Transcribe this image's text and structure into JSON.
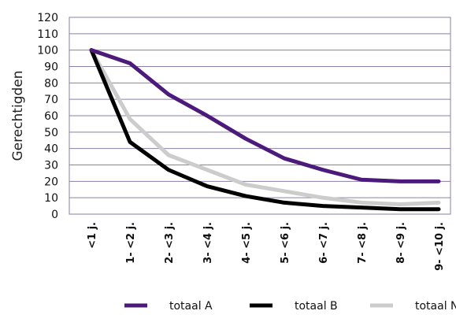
{
  "chart_data": {
    "type": "line",
    "title": "",
    "xlabel": "",
    "ylabel": "Gerechtigden",
    "ylim": [
      0,
      120
    ],
    "yticks": [
      0,
      10,
      20,
      30,
      40,
      50,
      60,
      70,
      80,
      90,
      100,
      110,
      120
    ],
    "grid": true,
    "legend": "bottom",
    "categories": [
      "<1 j.",
      "1- <2 j.",
      "2- <3 j.",
      "3- <4 j.",
      "4- <5 j.",
      "5- <6 j.",
      "6- <7 j.",
      "7- <8 j.",
      "8- <9 j.",
      "9- <10 j."
    ],
    "series": [
      {
        "name": "totaal A",
        "color": "#4b1a7a",
        "values": [
          100,
          92,
          73,
          60,
          46,
          34,
          27,
          21,
          20,
          20
        ]
      },
      {
        "name": "totaal B",
        "color": "#000000",
        "values": [
          100,
          44,
          27,
          17,
          11,
          7,
          5,
          4,
          3,
          3
        ]
      },
      {
        "name": "totaal N",
        "color": "#cccccc",
        "values": [
          100,
          58,
          36,
          27,
          18,
          14,
          10,
          7,
          6,
          7
        ]
      }
    ]
  }
}
